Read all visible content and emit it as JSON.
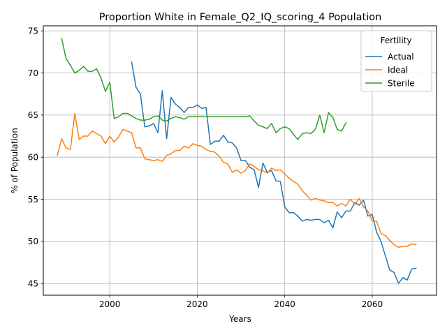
{
  "chart_data": {
    "type": "line",
    "title": "Proportion White in Female_Q2_IQ_scoring_4 Population",
    "xlabel": "Years",
    "ylabel": "% of Population",
    "xlim": [
      1984.8,
      2074.7
    ],
    "ylim": [
      43.6,
      75.6
    ],
    "xticks": [
      2000,
      2020,
      2040,
      2060
    ],
    "yticks": [
      45,
      50,
      55,
      60,
      65,
      70,
      75
    ],
    "grid": true,
    "legend": {
      "title": "Fertility",
      "placement": "top-right"
    },
    "series": [
      {
        "name": "Actual",
        "color": "#1f77b4",
        "x": [
          2005,
          2006,
          2007,
          2008,
          2009,
          2010,
          2011,
          2012,
          2013,
          2014,
          2015,
          2016,
          2017,
          2018,
          2019,
          2020,
          2021,
          2022,
          2023,
          2024,
          2025,
          2026,
          2027,
          2028,
          2029,
          2030,
          2031,
          2032,
          2033,
          2034,
          2035,
          2036,
          2037,
          2038,
          2039,
          2040,
          2041,
          2042,
          2043,
          2044,
          2045,
          2046,
          2047,
          2048,
          2049,
          2050,
          2051,
          2052,
          2053,
          2054,
          2055,
          2056,
          2057,
          2058,
          2059,
          2060,
          2061,
          2062,
          2063,
          2064,
          2065,
          2066,
          2067,
          2068,
          2069,
          2070
        ],
        "y": [
          71.3,
          68.3,
          67.5,
          63.6,
          63.7,
          64.0,
          62.9,
          67.9,
          62.2,
          67.1,
          66.3,
          65.9,
          65.3,
          65.9,
          65.9,
          66.2,
          65.8,
          65.9,
          61.5,
          61.9,
          61.9,
          62.6,
          61.8,
          61.7,
          61.1,
          59.6,
          59.6,
          58.8,
          58.5,
          56.4,
          59.3,
          58.2,
          58.4,
          57.2,
          57.1,
          54.1,
          53.4,
          53.4,
          53.0,
          52.4,
          52.6,
          52.5,
          52.6,
          52.6,
          52.2,
          52.5,
          51.6,
          53.5,
          52.8,
          53.6,
          53.6,
          54.6,
          54.3,
          54.9,
          53.0,
          53.2,
          51.1,
          50.0,
          48.3,
          46.6,
          46.3,
          45.0,
          45.7,
          45.4,
          46.7,
          46.8
        ]
      },
      {
        "name": "Ideal",
        "color": "#ff7f0e",
        "x": [
          1988,
          1989,
          1990,
          1991,
          1992,
          1993,
          1994,
          1995,
          1996,
          1997,
          1998,
          1999,
          2000,
          2001,
          2002,
          2003,
          2004,
          2005,
          2006,
          2007,
          2008,
          2009,
          2010,
          2011,
          2012,
          2013,
          2014,
          2015,
          2016,
          2017,
          2018,
          2019,
          2020,
          2021,
          2022,
          2023,
          2024,
          2025,
          2026,
          2027,
          2028,
          2029,
          2030,
          2031,
          2032,
          2033,
          2034,
          2035,
          2036,
          2037,
          2038,
          2039,
          2040,
          2041,
          2042,
          2043,
          2044,
          2045,
          2046,
          2047,
          2048,
          2049,
          2050,
          2051,
          2052,
          2053,
          2054,
          2055,
          2056,
          2057,
          2058,
          2059,
          2060,
          2061,
          2062,
          2063,
          2064,
          2065,
          2066,
          2067,
          2068,
          2069,
          2070
        ],
        "y": [
          60.2,
          62.2,
          61.1,
          60.9,
          65.2,
          62.1,
          62.5,
          62.5,
          63.1,
          62.8,
          62.5,
          61.6,
          62.5,
          61.8,
          62.4,
          63.3,
          63.1,
          62.9,
          61.1,
          61.1,
          59.8,
          59.7,
          59.6,
          59.7,
          59.5,
          60.2,
          60.4,
          60.8,
          60.8,
          61.3,
          61.1,
          61.6,
          61.4,
          61.3,
          60.9,
          60.7,
          60.6,
          60.1,
          59.4,
          59.2,
          58.2,
          58.5,
          58.1,
          58.4,
          59.2,
          58.9,
          58.5,
          58.4,
          58.1,
          58.7,
          58.4,
          58.5,
          58.0,
          57.5,
          57.1,
          56.8,
          56.0,
          55.5,
          54.9,
          55.1,
          54.9,
          54.8,
          54.6,
          54.6,
          54.2,
          54.5,
          54.2,
          55.0,
          54.4,
          55.1,
          54.1,
          53.6,
          52.4,
          52.4,
          50.9,
          50.7,
          50.1,
          49.6,
          49.3,
          49.4,
          49.4,
          49.7,
          49.6
        ]
      },
      {
        "name": "Sterile",
        "color": "#2ca02c",
        "x": [
          1989,
          1990,
          1991,
          1992,
          1993,
          1994,
          1995,
          1996,
          1997,
          1998,
          1999,
          2000,
          2001,
          2002,
          2003,
          2004,
          2005,
          2006,
          2007,
          2008,
          2009,
          2010,
          2011,
          2012,
          2013,
          2014,
          2015,
          2016,
          2017,
          2018,
          2019,
          2020,
          2021,
          2022,
          2023,
          2024,
          2025,
          2026,
          2027,
          2028,
          2029,
          2030,
          2031,
          2032,
          2033,
          2034,
          2035,
          2036,
          2037,
          2038,
          2039,
          2040,
          2041,
          2042,
          2043,
          2044,
          2045,
          2046,
          2047,
          2048,
          2049,
          2050,
          2051,
          2052,
          2053,
          2054
        ],
        "y": [
          74.1,
          71.7,
          70.9,
          70.0,
          70.3,
          70.8,
          70.2,
          70.2,
          70.5,
          69.4,
          67.8,
          68.9,
          64.6,
          64.8,
          65.2,
          65.2,
          64.9,
          64.6,
          64.4,
          64.4,
          64.5,
          64.8,
          64.9,
          64.4,
          64.3,
          64.6,
          64.8,
          64.7,
          64.5,
          64.8,
          64.8,
          64.8,
          64.8,
          64.8,
          64.8,
          64.8,
          64.8,
          64.8,
          64.8,
          64.8,
          64.8,
          64.8,
          64.8,
          64.9,
          64.3,
          63.8,
          63.6,
          63.4,
          64.0,
          62.9,
          63.4,
          63.6,
          63.4,
          62.7,
          62.1,
          62.8,
          62.9,
          62.8,
          63.3,
          65.0,
          62.9,
          65.3,
          64.7,
          63.3,
          63.1,
          64.1
        ]
      }
    ]
  }
}
